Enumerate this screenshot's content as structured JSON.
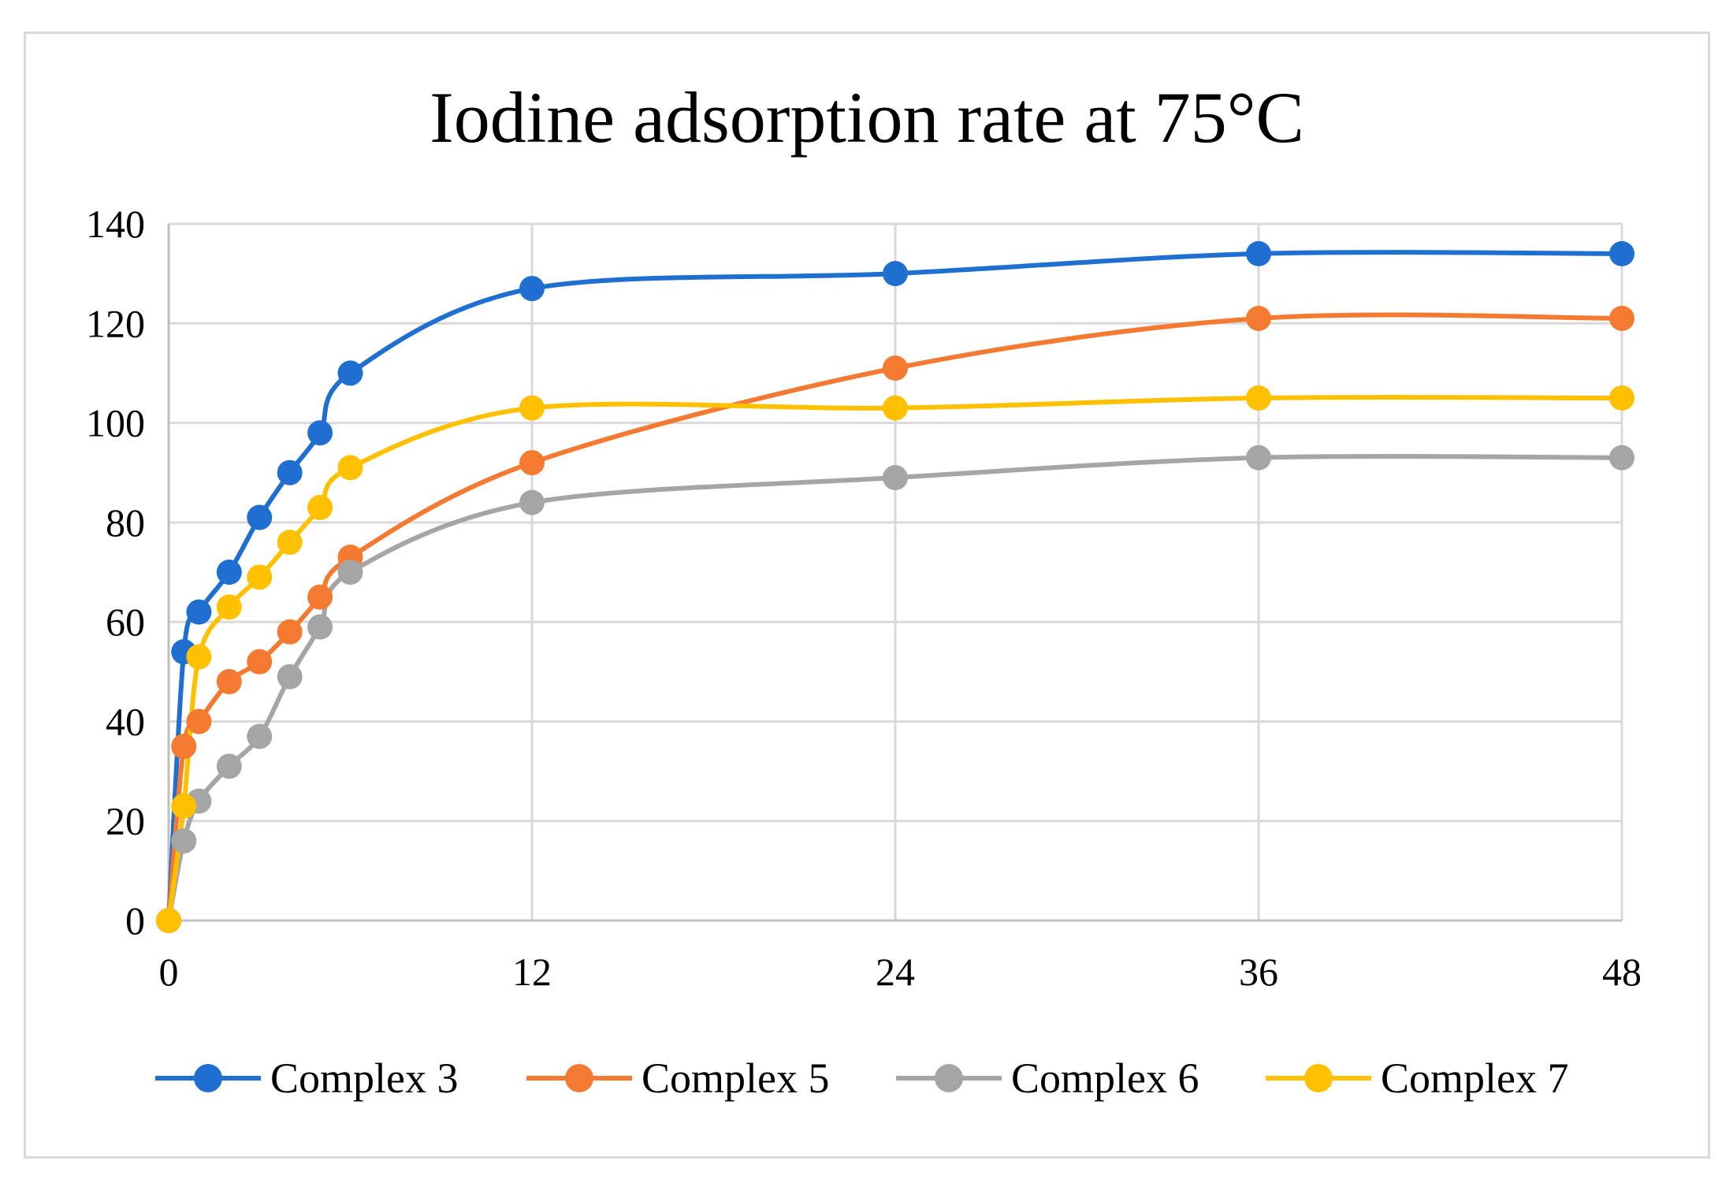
{
  "chart_data": {
    "type": "line",
    "title": "Iodine adsorption rate at 75°C",
    "xlabel": "",
    "ylabel": "",
    "xlim": [
      0,
      48
    ],
    "ylim": [
      0,
      140
    ],
    "x_ticks": [
      0,
      12,
      24,
      36,
      48
    ],
    "y_ticks": [
      0,
      20,
      40,
      60,
      80,
      100,
      120,
      140
    ],
    "grid": true,
    "legend_position": "bottom",
    "series": [
      {
        "name": "Complex 3",
        "color": "#1f6fd1",
        "x": [
          0,
          0.5,
          1,
          2,
          3,
          4,
          5,
          6,
          12,
          24,
          36,
          48
        ],
        "y": [
          0,
          54,
          62,
          70,
          81,
          90,
          98,
          110,
          127,
          130,
          134,
          134
        ]
      },
      {
        "name": "Complex 5",
        "color": "#f47a32",
        "x": [
          0,
          0.5,
          1,
          2,
          3,
          4,
          5,
          6,
          12,
          24,
          36,
          48
        ],
        "y": [
          0,
          35,
          40,
          48,
          52,
          58,
          65,
          73,
          92,
          111,
          121,
          121
        ]
      },
      {
        "name": "Complex 6",
        "color": "#a5a5a5",
        "x": [
          0,
          0.5,
          1,
          2,
          3,
          4,
          5,
          6,
          12,
          24,
          36,
          48
        ],
        "y": [
          0,
          16,
          24,
          31,
          37,
          49,
          59,
          70,
          84,
          89,
          93,
          93
        ]
      },
      {
        "name": "Complex 7",
        "color": "#ffc000",
        "x": [
          0,
          0.5,
          1,
          2,
          3,
          4,
          5,
          6,
          12,
          24,
          36,
          48
        ],
        "y": [
          0,
          23,
          53,
          63,
          69,
          76,
          83,
          91,
          103,
          103,
          105,
          105
        ]
      }
    ]
  }
}
